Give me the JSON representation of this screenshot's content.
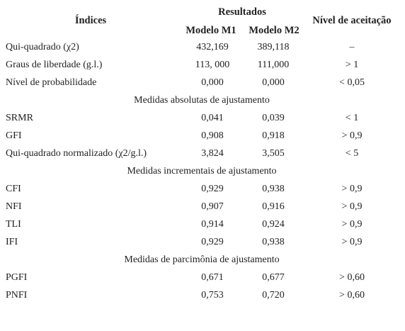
{
  "table": {
    "header": {
      "indices": "Índices",
      "resultados": "Resultados",
      "model_m1": "Modelo M1",
      "model_m2": "Modelo M2",
      "nivel": "Nível de aceitação"
    },
    "rows": [
      [
        "Qui-quadrado (χ2)",
        "432,169",
        "389,118",
        "–"
      ],
      [
        "Graus de liberdade (g.l.)",
        "113, 000",
        "111,000",
        "> 1"
      ],
      [
        "Nível de probabilidade",
        "0,000",
        "0,000",
        "< 0,05"
      ],
      {
        "section": "Medidas absolutas de ajustamento"
      },
      [
        "SRMR",
        "0,041",
        "0,039",
        "< 1"
      ],
      [
        "GFI",
        "0,908",
        "0,918",
        "> 0,9"
      ],
      [
        "Qui-quadrado normalizado (χ2/g.l.)",
        "3,824",
        "3,505",
        "< 5"
      ],
      {
        "section": "Medidas incrementais de ajustamento"
      },
      [
        "CFI",
        "0,929",
        "0,938",
        "> 0,9"
      ],
      [
        "NFI",
        "0,907",
        "0,916",
        "> 0,9"
      ],
      [
        "TLI",
        "0,914",
        "0,924",
        "> 0,9"
      ],
      [
        "IFI",
        "0,929",
        "0,938",
        "> 0,9"
      ],
      {
        "section": "Medidas de parcimônia de ajustamento"
      },
      [
        "PGFI",
        "0,671",
        "0,677",
        "> 0,60"
      ],
      [
        "PNFI",
        "0,753",
        "0,720",
        "> 0,60"
      ]
    ]
  }
}
